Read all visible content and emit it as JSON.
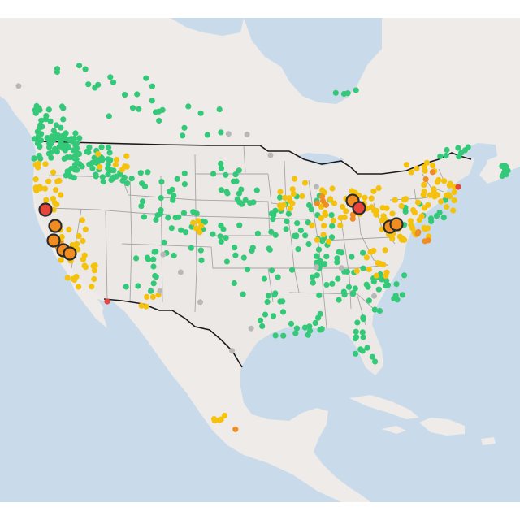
{
  "map": {
    "colors": {
      "water": "#c9dbea",
      "land": "#eeebe8",
      "land_usa": "#ece8e6",
      "state_border": "#a9a5a6",
      "country_border": "#1a1a1a",
      "good": "#34c978",
      "moderate": "#f4c20d",
      "usg": "#f08c21",
      "unhealthy": "#e8453c",
      "no_data": "#b8b8b8",
      "large_outline": "#2a2a2a"
    },
    "categories": [
      "good",
      "moderate",
      "usg",
      "unhealthy",
      "no_data"
    ]
  }
}
